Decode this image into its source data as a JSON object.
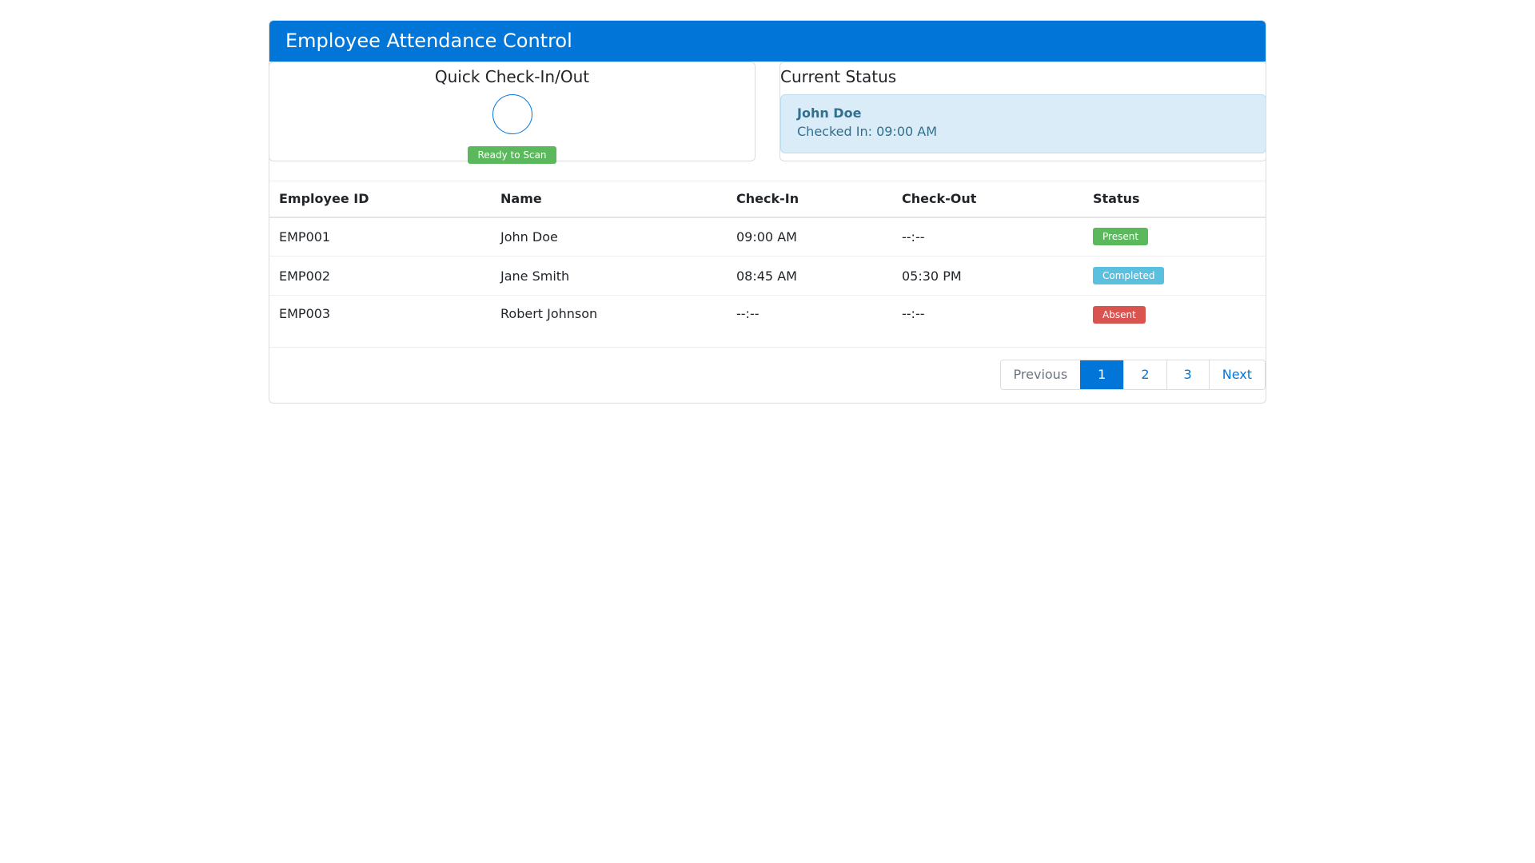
{
  "app": {
    "title": "Employee Attendance Control"
  },
  "checkin": {
    "title": "Quick Check-In/Out",
    "scan_badge": "Ready to Scan"
  },
  "status": {
    "title": "Current Status",
    "name": "John Doe",
    "detail": "Checked In: 09:00 AM"
  },
  "table": {
    "headers": [
      "Employee ID",
      "Name",
      "Check-In",
      "Check-Out",
      "Status"
    ],
    "rows": [
      {
        "id": "EMP001",
        "name": "John Doe",
        "in": "09:00 AM",
        "out": "--:--",
        "status": "Present"
      },
      {
        "id": "EMP002",
        "name": "Jane Smith",
        "in": "08:45 AM",
        "out": "05:30 PM",
        "status": "Completed"
      },
      {
        "id": "EMP003",
        "name": "Robert Johnson",
        "in": "--:--",
        "out": "--:--",
        "status": "Absent"
      }
    ]
  },
  "pagination": {
    "previous": "Previous",
    "pages": [
      "1",
      "2",
      "3"
    ],
    "next": "Next",
    "current": "1"
  },
  "colors": {
    "primary": "#0275d8",
    "present": "#5cb85c",
    "completed": "#5bc0de",
    "absent": "#d9534f"
  }
}
